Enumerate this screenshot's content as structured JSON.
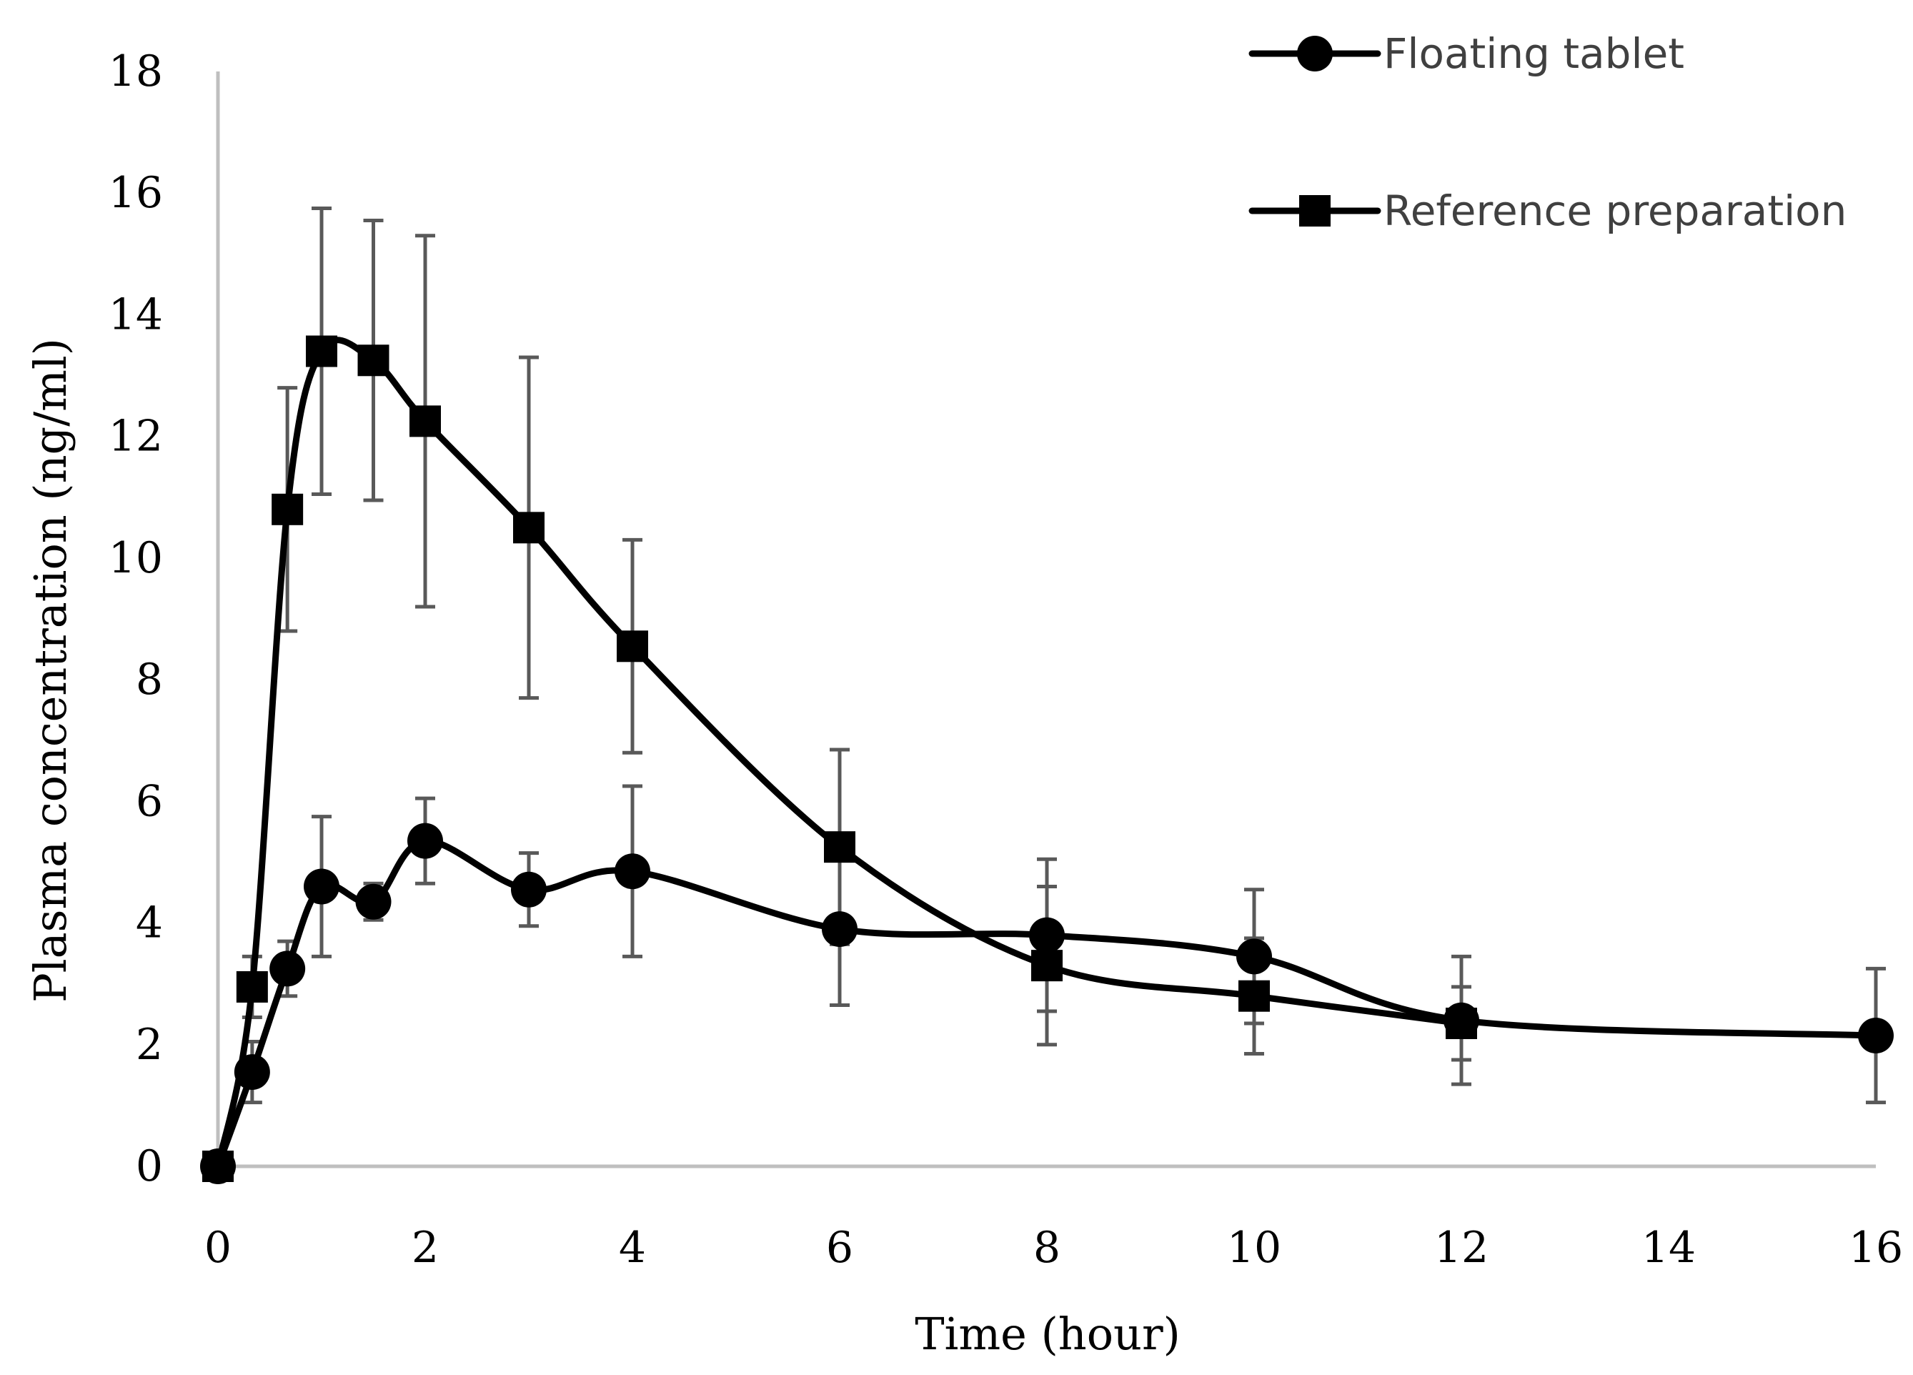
{
  "chart_data": {
    "type": "line",
    "title": "",
    "xlabel": "Time (hour)",
    "ylabel": "Plasma concentration (ng/ml)",
    "xlim": [
      0,
      16
    ],
    "ylim": [
      0,
      18
    ],
    "x_ticks": [
      "0",
      "2",
      "4",
      "6",
      "8",
      "10",
      "12",
      "14",
      "16"
    ],
    "y_ticks": [
      "0",
      "2",
      "4",
      "6",
      "8",
      "10",
      "12",
      "14",
      "16",
      "18"
    ],
    "grid": false,
    "legend_position": "top-right",
    "series": [
      {
        "name": "Floating tablet",
        "marker": "circle",
        "x": [
          0,
          0.33,
          0.67,
          1,
          1.5,
          2,
          3,
          4,
          6,
          8,
          10,
          12,
          16
        ],
        "y": [
          0,
          1.55,
          3.25,
          4.6,
          4.35,
          5.35,
          4.55,
          4.85,
          3.9,
          3.8,
          3.45,
          2.4,
          2.15
        ],
        "err": [
          0,
          0.5,
          0.45,
          1.15,
          0.3,
          0.7,
          0.6,
          1.4,
          1.25,
          1.25,
          1.1,
          1.05,
          1.1
        ]
      },
      {
        "name": "Reference preparation",
        "marker": "square",
        "x": [
          0,
          0.33,
          0.67,
          1,
          1.5,
          2,
          3,
          4,
          6,
          8,
          10,
          12
        ],
        "y": [
          0,
          2.95,
          10.8,
          13.4,
          13.25,
          12.25,
          10.5,
          8.55,
          5.25,
          3.3,
          2.8,
          2.35
        ],
        "err": [
          0,
          0.5,
          2.0,
          2.35,
          2.3,
          3.05,
          2.8,
          1.75,
          1.6,
          1.3,
          0.95,
          0.6
        ]
      }
    ]
  }
}
